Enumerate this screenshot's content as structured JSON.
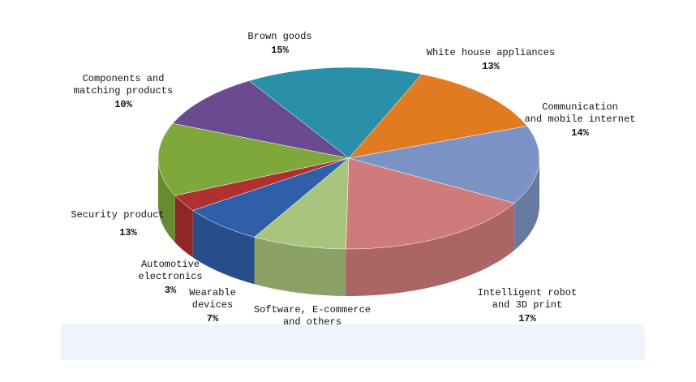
{
  "chart_data": {
    "type": "pie3d",
    "categories": [
      [
        "Brown goods"
      ],
      [
        "White house appliances"
      ],
      [
        "Communication",
        "and mobile internet"
      ],
      [
        "Intelligent robot",
        "and 3D print"
      ],
      [
        "Software, E-commerce",
        "and others"
      ],
      [
        "Wearable",
        "devices"
      ],
      [
        "Automotive",
        "electronics"
      ],
      [
        "Security product"
      ],
      [
        "Components and",
        "matching products"
      ]
    ],
    "values": [
      15,
      13,
      14,
      17,
      8,
      7,
      3,
      13,
      10
    ],
    "value_labels": [
      "15%",
      "13%",
      "14%",
      "17%",
      null,
      "7%",
      "3%",
      "13%",
      "10%"
    ],
    "colors": [
      "#2a8fa8",
      "#e07b22",
      "#7b93c4",
      "#d07b7b",
      "#a9c47c",
      "#2f5fa8",
      "#b03030",
      "#7fa83a",
      "#6a4a90"
    ]
  }
}
